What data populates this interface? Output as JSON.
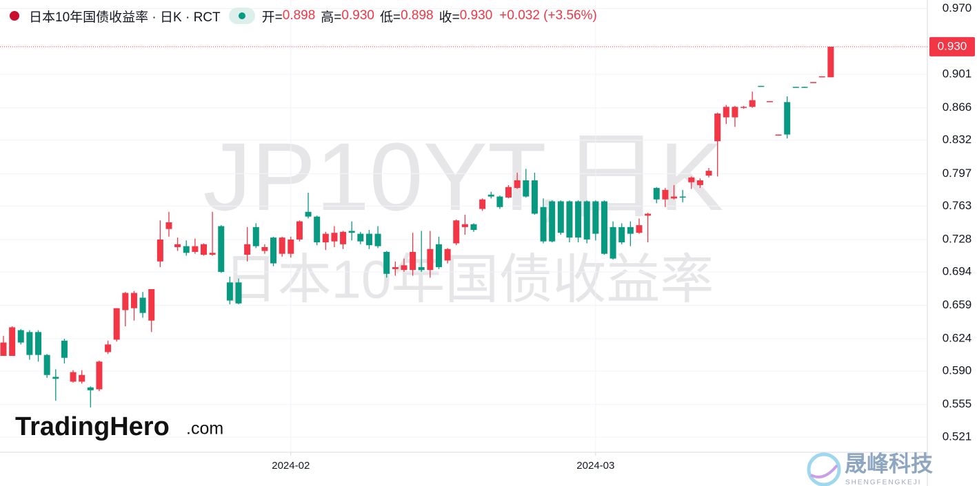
{
  "chart_data": {
    "type": "candlestick",
    "title": "日本10年国债收益率 · 日K · RCT",
    "ohlc_legend": [
      {
        "label": "开=",
        "value": "0.898"
      },
      {
        "label": "高=",
        "value": "0.930"
      },
      {
        "label": "低=",
        "value": "0.898"
      },
      {
        "label": "收=",
        "value": "0.930"
      }
    ],
    "change": "+0.032 (+3.56%)",
    "watermark": "JP10YT,日K",
    "watermark_subtitle": "日本10年国债收益率",
    "logo": "TradingHero",
    "logo_suffix": ".com",
    "brand": "晟峰科技",
    "brand_subtitle": "SHENGFENGKEJI",
    "categories": [
      null,
      null,
      null,
      null,
      null,
      null,
      null,
      null,
      null,
      null,
      null,
      null,
      null,
      null,
      null,
      null,
      null,
      null,
      null,
      null,
      null,
      null,
      null,
      null,
      null,
      null,
      null,
      null,
      null,
      null,
      null,
      null,
      null,
      "2024-02",
      null,
      null,
      null,
      null,
      null,
      null,
      null,
      null,
      null,
      null,
      null,
      null,
      null,
      null,
      null,
      null,
      null,
      null,
      null,
      null,
      null,
      null,
      null,
      null,
      null,
      null,
      null,
      null,
      null,
      null,
      null,
      null,
      null,
      null,
      "2024-03",
      null,
      null,
      null,
      null,
      null,
      null,
      null,
      null,
      null,
      null,
      null,
      null,
      null,
      null,
      null,
      null,
      null,
      null,
      null,
      null,
      null,
      null,
      null,
      null,
      null,
      null,
      null
    ],
    "open": [
      0.606,
      0.606,
      0.633,
      0.631,
      0.631,
      0.607,
      0.584,
      0.622,
      0.579,
      0.579,
      0.573,
      0.571,
      0.61,
      0.623,
      0.654,
      0.656,
      0.667,
      0.643,
      0.705,
      0.739,
      0.72,
      0.721,
      0.715,
      0.712,
      0.712,
      0.742,
      0.683,
      0.683,
      0.712,
      0.741,
      0.716,
      0.73,
      0.713,
      0.713,
      0.728,
      0.757,
      0.752,
      0.725,
      0.726,
      0.723,
      0.737,
      0.734,
      0.734,
      0.734,
      0.715,
      0.697,
      0.696,
      0.696,
      0.699,
      0.696,
      0.723,
      0.706,
      0.724,
      0.741,
      0.744,
      0.76,
      0.775,
      0.773,
      0.772,
      0.782,
      0.79,
      0.79,
      0.762,
      0.768,
      0.768,
      0.768,
      0.768,
      0.768,
      0.768,
      0.768,
      0.741,
      0.741,
      0.741,
      0.735,
      0.753,
      0.782,
      0.77,
      0.771,
      0.773,
      0.788,
      0.785,
      0.795,
      0.831,
      0.856,
      0.856,
      0.866,
      0.867,
      0.889,
      0.872,
      0.837,
      0.872,
      0.888,
      0.888,
      0.892,
      0.898,
      0.898
    ],
    "high": [
      0.627,
      0.637,
      0.634,
      0.633,
      0.633,
      0.608,
      0.592,
      0.624,
      0.591,
      0.591,
      0.574,
      0.601,
      0.622,
      0.656,
      0.673,
      0.674,
      0.673,
      0.676,
      0.748,
      0.757,
      0.73,
      0.727,
      0.729,
      0.724,
      0.757,
      0.743,
      0.689,
      0.687,
      0.741,
      0.745,
      0.723,
      0.731,
      0.731,
      0.731,
      0.748,
      0.777,
      0.753,
      0.736,
      0.742,
      0.737,
      0.747,
      0.736,
      0.738,
      0.742,
      0.716,
      0.705,
      0.708,
      0.735,
      0.737,
      0.737,
      0.731,
      0.719,
      0.749,
      0.754,
      0.745,
      0.771,
      0.778,
      0.774,
      0.785,
      0.798,
      0.802,
      0.798,
      0.771,
      0.769,
      0.769,
      0.769,
      0.769,
      0.769,
      0.769,
      0.769,
      0.747,
      0.745,
      0.747,
      0.75,
      0.756,
      0.783,
      0.782,
      0.785,
      0.78,
      0.794,
      0.792,
      0.803,
      0.861,
      0.869,
      0.868,
      0.868,
      0.883,
      0.889,
      0.873,
      0.838,
      0.878,
      0.888,
      0.888,
      0.893,
      0.899,
      0.93
    ],
    "low": [
      0.606,
      0.606,
      0.618,
      0.602,
      0.6,
      0.583,
      0.559,
      0.598,
      0.578,
      0.577,
      0.552,
      0.569,
      0.608,
      0.621,
      0.637,
      0.643,
      0.646,
      0.631,
      0.699,
      0.731,
      0.716,
      0.711,
      0.713,
      0.711,
      0.711,
      0.693,
      0.66,
      0.66,
      0.705,
      0.719,
      0.713,
      0.7,
      0.71,
      0.709,
      0.726,
      0.75,
      0.722,
      0.717,
      0.72,
      0.718,
      0.727,
      0.723,
      0.718,
      0.719,
      0.688,
      0.69,
      0.694,
      0.69,
      0.694,
      0.688,
      0.697,
      0.703,
      0.722,
      0.733,
      0.736,
      0.758,
      0.771,
      0.76,
      0.771,
      0.781,
      0.772,
      0.754,
      0.724,
      0.725,
      0.733,
      0.725,
      0.725,
      0.724,
      0.727,
      0.712,
      0.707,
      0.723,
      0.721,
      0.734,
      0.725,
      0.766,
      0.762,
      0.77,
      0.767,
      0.781,
      0.782,
      0.793,
      0.794,
      0.849,
      0.846,
      0.865,
      0.866,
      0.888,
      0.872,
      0.837,
      0.834,
      0.887,
      0.887,
      0.892,
      0.898,
      0.898
    ],
    "close": [
      0.62,
      0.636,
      0.62,
      0.607,
      0.607,
      0.586,
      0.582,
      0.604,
      0.589,
      0.586,
      0.57,
      0.6,
      0.618,
      0.656,
      0.672,
      0.672,
      0.651,
      0.676,
      0.728,
      0.746,
      0.723,
      0.714,
      0.721,
      0.723,
      0.714,
      0.694,
      0.664,
      0.661,
      0.723,
      0.721,
      0.72,
      0.703,
      0.73,
      0.728,
      0.747,
      0.752,
      0.725,
      0.734,
      0.735,
      0.736,
      0.735,
      0.726,
      0.722,
      0.721,
      0.692,
      0.699,
      0.701,
      0.715,
      0.696,
      0.718,
      0.699,
      0.718,
      0.748,
      0.744,
      0.738,
      0.77,
      0.773,
      0.762,
      0.783,
      0.79,
      0.773,
      0.755,
      0.726,
      0.726,
      0.735,
      0.73,
      0.73,
      0.728,
      0.734,
      0.713,
      0.708,
      0.725,
      0.734,
      0.743,
      0.755,
      0.77,
      0.78,
      0.773,
      0.772,
      0.793,
      0.79,
      0.8,
      0.86,
      0.867,
      0.867,
      0.867,
      0.874,
      0.888,
      0.873,
      0.838,
      0.838,
      0.887,
      0.887,
      0.893,
      0.899,
      0.93
    ],
    "up_color": "#f23645",
    "down_color": "#089981",
    "last_price": {
      "value": 0.93,
      "label": "0.930"
    },
    "ylim": [
      0.505,
      0.979
    ],
    "yticks": [
      {
        "value": 0.97,
        "label": "0.970"
      },
      0.901,
      0.866,
      0.832,
      0.797,
      0.763,
      0.728,
      0.694,
      0.659,
      0.624,
      {
        "value": 0.59,
        "label": "0.590"
      },
      0.555,
      0.521
    ],
    "grid": true
  }
}
